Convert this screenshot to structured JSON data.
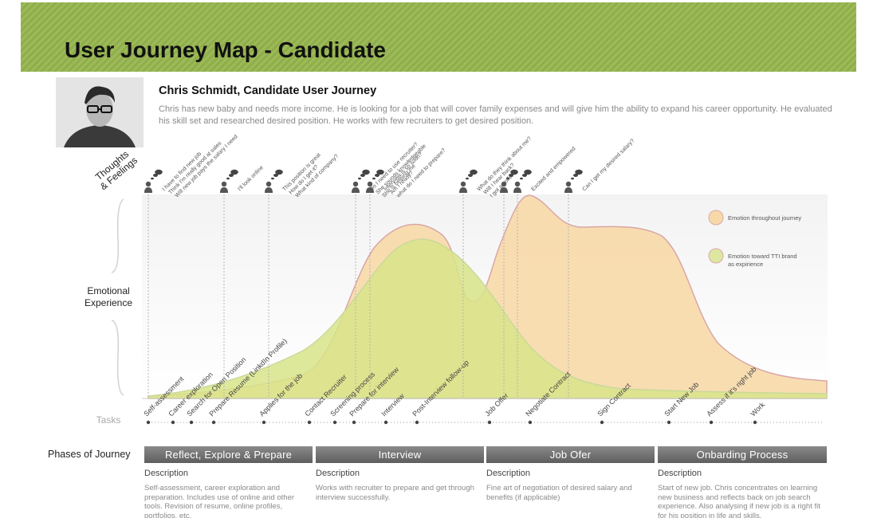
{
  "header": {
    "title": "User Journey Map - Candidate"
  },
  "persona": {
    "name": "Chris Schmidt, Candidate User Journey",
    "description": "Chris has new baby and needs more income. He is looking for a job that will cover family expenses and will give him the ability to expand his career opportunity. He evaluated his skill set and researched desired position. He works with few recruiters to get desired position."
  },
  "labels": {
    "thoughts_line1": "Thoughts",
    "thoughts_line2": "& Feelings",
    "emotional_line1": "Emotional",
    "emotional_line2": "Experience",
    "tasks": "Tasks",
    "phases": "Phases of Journey"
  },
  "legend": [
    {
      "label": "Emotion throughout journey",
      "color": "#f7d9a8"
    },
    {
      "label": "Emotion toward TTI brand as expirience",
      "color": "#dce8a0"
    }
  ],
  "thoughts": [
    {
      "lines": [
        "I have to find new job",
        "Think I'm really good at sales",
        "Will new job pays the salary I need"
      ]
    },
    {
      "lines": [
        "I'll look online"
      ]
    },
    {
      "lines": [
        "This position is great",
        "How do I get it?",
        "What kind of company?"
      ]
    },
    {
      "lines": [
        "Do I need to use recruiter?",
        "She sounds knowledgeable",
        "She is helping me"
      ]
    },
    {
      "lines": [
        "Interview is so soon?",
        "Am I ready?",
        "what do I need to prepare?"
      ]
    },
    {
      "lines": [
        "What do they think about me?",
        "Will I hear back?",
        "I got an offer!!"
      ]
    },
    {
      "lines": [
        "Excited and empowered"
      ]
    },
    {
      "lines": [
        "Can I get my desired salary?"
      ]
    }
  ],
  "tasks": [
    "Self-assessment",
    "Career exploration",
    "Search for Open Position",
    "Prepare Resume (LinkdIn Profile)",
    "Applies for the job",
    "Contact Recruiter",
    "Screening process",
    "Prepare for interview",
    "Interview",
    "Post-Interview follow-up",
    "Job Offer",
    "Negotiate Contract",
    "Sign Contract",
    "Start New Job",
    "Assess if it's right job",
    "Work"
  ],
  "phases": [
    {
      "name": "Reflect, Explore & Prepare",
      "desc_title": "Description",
      "desc": "Self-assessment, career exploration and preparation. Includes use of online and other tools. Revision of resume, online profiles, portfolios, etc."
    },
    {
      "name": "Interview",
      "desc_title": "Description",
      "desc": "Works with recruiter to prepare and get through interview successfully."
    },
    {
      "name": "Job Ofer",
      "desc_title": "Description",
      "desc": "Fine art of negotiation of desired salary and benefits (if applicable)"
    },
    {
      "name": "Onbarding Process",
      "desc_title": "Description",
      "desc": "Start of new job. Chris concentrates on learning new business and reflects back on  job search experience. Also analysing if new job is a right fit for his position in life and skills."
    }
  ]
}
